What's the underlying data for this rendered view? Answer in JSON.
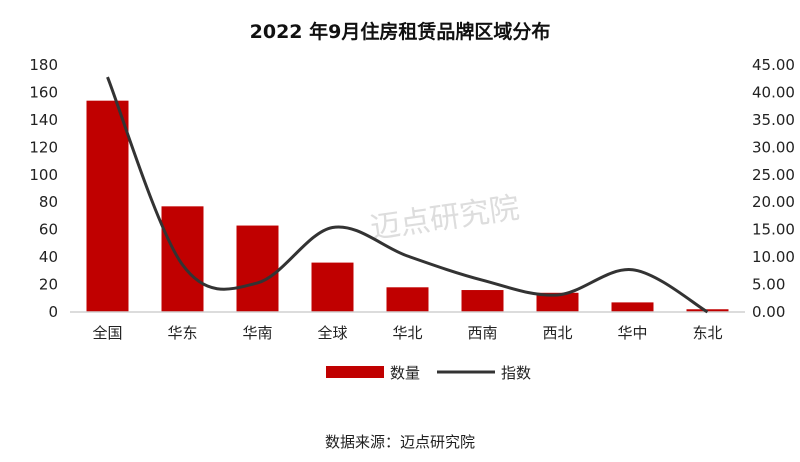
{
  "chart_data": {
    "type": "bar",
    "title": "2022 年9月住房租赁品牌区域分布",
    "categories": [
      "全国",
      "华东",
      "华南",
      "全球",
      "华北",
      "西南",
      "西北",
      "华中",
      "东北"
    ],
    "series": [
      {
        "name": "数量",
        "type": "bar",
        "axis": "left",
        "color": "#C00000",
        "values": [
          154,
          77,
          63,
          36,
          18,
          16,
          14,
          7,
          2
        ]
      },
      {
        "name": "指数",
        "type": "line",
        "axis": "right",
        "color": "#333333",
        "values": [
          42.8,
          8.6,
          5.3,
          15.4,
          10.2,
          5.8,
          3.1,
          7.7,
          0
        ]
      }
    ],
    "ylim": [
      0,
      180
    ],
    "y_ticks": [
      "0",
      "20",
      "40",
      "60",
      "80",
      "100",
      "120",
      "140",
      "160",
      "180"
    ],
    "y2lim": [
      0,
      45
    ],
    "y2_ticks": [
      "0.00",
      "5.00",
      "10.00",
      "15.00",
      "20.00",
      "25.00",
      "30.00",
      "35.00",
      "40.00",
      "45.00"
    ],
    "legend_position": "bottom",
    "grid": false,
    "watermark": "迈点研究院",
    "source": "数据来源：迈点研究院"
  }
}
